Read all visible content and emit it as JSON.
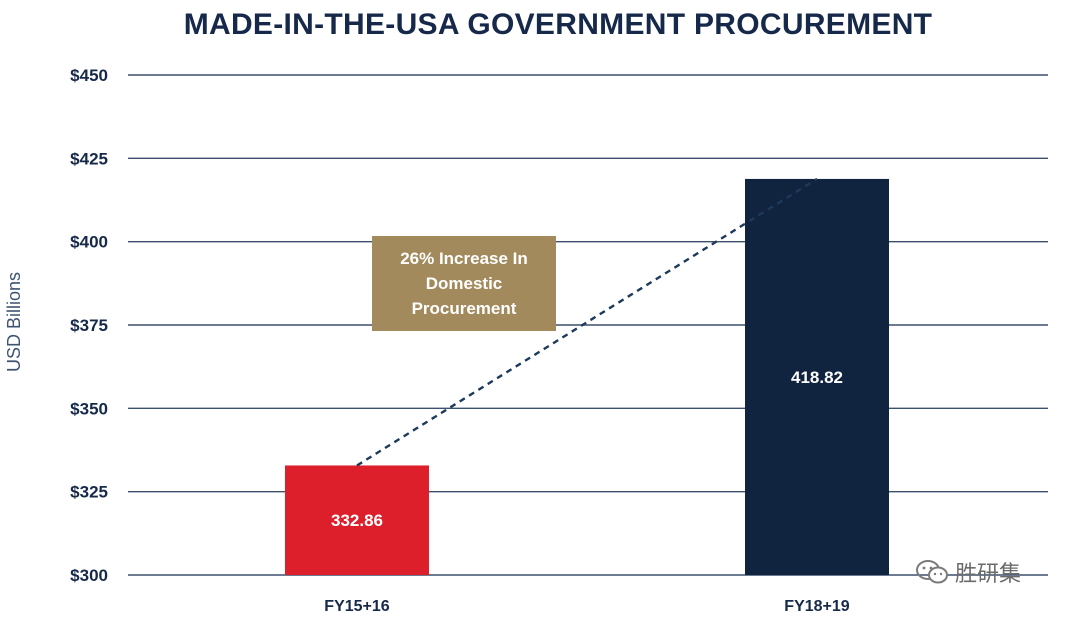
{
  "chart_data": {
    "type": "bar",
    "title": "MADE-IN-THE-USA GOVERNMENT PROCUREMENT",
    "ylabel": "USD Billions",
    "xlabel": "",
    "categories": [
      "FY15+16",
      "FY18+19"
    ],
    "values": [
      332.86,
      418.82
    ],
    "value_labels": [
      "332.86",
      "418.82"
    ],
    "bar_colors": [
      "#dc1f2a",
      "#10233f"
    ],
    "ylim": [
      300,
      450
    ],
    "yticks": [
      300,
      325,
      350,
      375,
      400,
      425,
      450
    ],
    "ytick_labels": [
      "$300",
      "$325",
      "$350",
      "$375",
      "$400",
      "$425",
      "$450"
    ],
    "grid": true,
    "annotation": {
      "text": "26% Increase In Domestic Procurement",
      "color": "#a38a5c"
    },
    "trend_line": {
      "style": "dashed",
      "color": "#1d3a5a"
    }
  },
  "watermark": {
    "text": "胜研集"
  }
}
